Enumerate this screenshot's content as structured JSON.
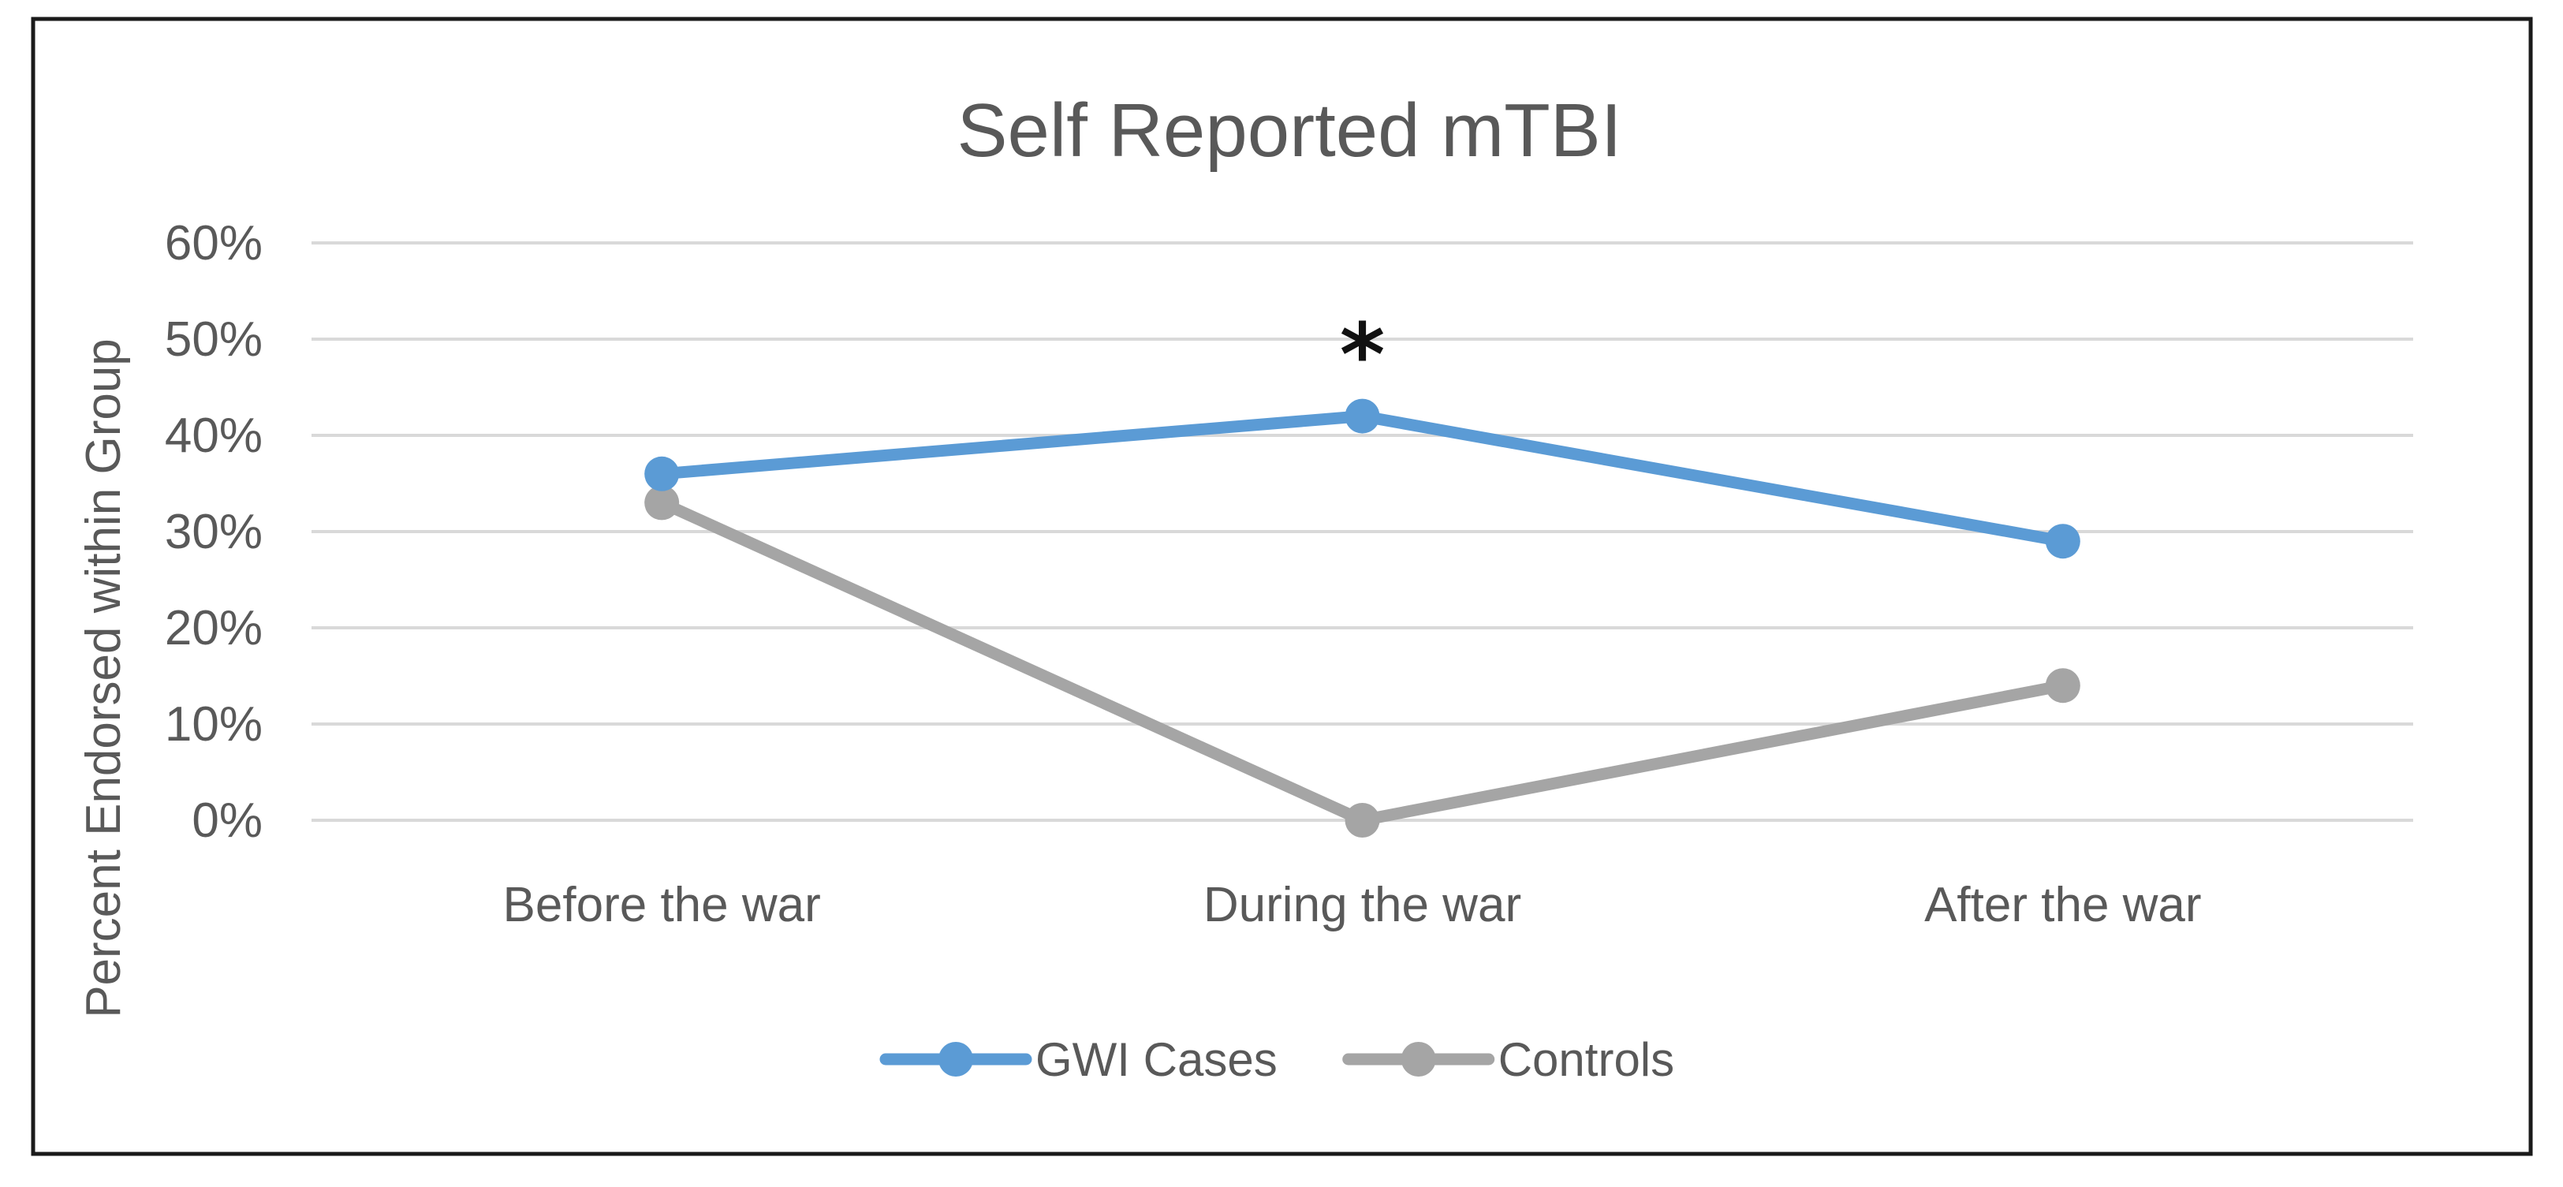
{
  "chart_data": {
    "type": "line",
    "title": "Self Reported mTBI",
    "xlabel": "",
    "ylabel": "Percent Endorsed within Group",
    "categories": [
      "Before the war",
      "During the war",
      "After the war"
    ],
    "series": [
      {
        "name": "GWI Cases",
        "values": [
          36,
          42,
          29
        ],
        "color": "#5b9bd5"
      },
      {
        "name": "Controls",
        "values": [
          33,
          0,
          14
        ],
        "color": "#a5a5a5"
      }
    ],
    "ylim": [
      0,
      60
    ],
    "yticks": [
      0,
      10,
      20,
      30,
      40,
      50,
      60
    ],
    "ytick_labels": [
      "0%",
      "10%",
      "20%",
      "30%",
      "40%",
      "50%",
      "60%"
    ],
    "grid": true,
    "legend_position": "bottom",
    "annotations": [
      {
        "text": "*",
        "category": "During the war",
        "y": 50
      }
    ]
  }
}
